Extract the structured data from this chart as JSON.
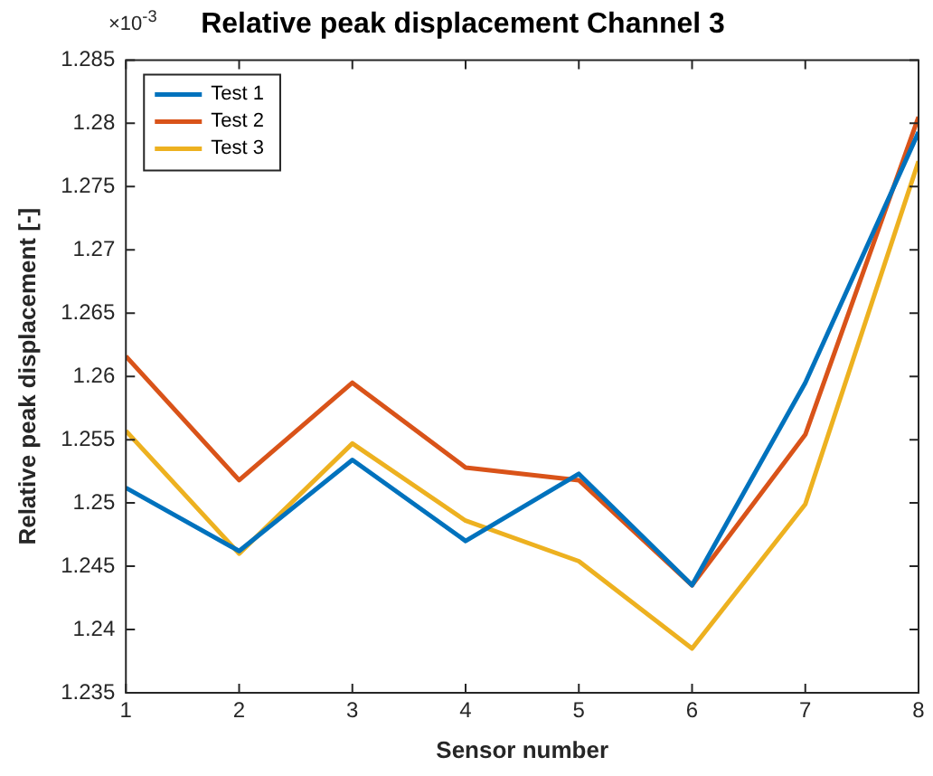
{
  "chart_data": {
    "type": "line",
    "title": "Relative peak displacement Channel 3",
    "xlabel": "Sensor number",
    "ylabel": "Relative peak displacement [-]",
    "annotations": [
      "×10$^{-3}$"
    ],
    "x": [
      1,
      2,
      3,
      4,
      5,
      6,
      7,
      8
    ],
    "xlim": [
      1,
      8
    ],
    "xticks": [
      1,
      2,
      3,
      4,
      5,
      6,
      7,
      8
    ],
    "ylim": [
      1.235,
      1.285
    ],
    "yticks": [
      1.235,
      1.24,
      1.245,
      1.25,
      1.255,
      1.26,
      1.265,
      1.27,
      1.275,
      1.28,
      1.285
    ],
    "grid": false,
    "legend": "top left",
    "marker": "none",
    "line_style": "solid",
    "series": [
      {
        "name": "Test 1",
        "color": "#0072bd",
        "values": [
          1.2512,
          1.2462,
          1.2534,
          1.247,
          1.2523,
          1.2435,
          1.2595,
          1.2793
        ]
      },
      {
        "name": "Test 2",
        "color": "#d95319",
        "values": [
          1.2616,
          1.2518,
          1.2595,
          1.2528,
          1.2518,
          1.2435,
          1.2554,
          1.2805
        ]
      },
      {
        "name": "Test 3",
        "color": "#edb120",
        "values": [
          1.2557,
          1.246,
          1.2547,
          1.2486,
          1.2454,
          1.2385,
          1.2499,
          1.277
        ]
      }
    ]
  }
}
